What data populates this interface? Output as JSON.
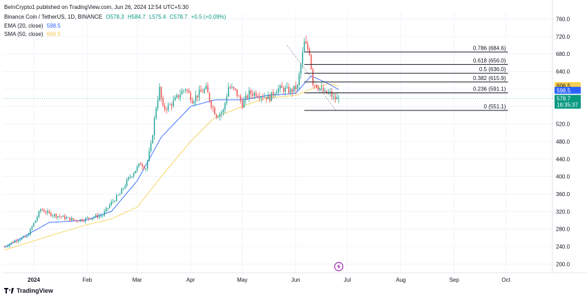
{
  "header": {
    "published": "BeInCrypto1 published on TradingView.com, Jun 26, 2024 12:54 UTC+5:30",
    "symbol": "Binance Coin / TetherUS, 1D, BINANCE",
    "open": "O578.3",
    "high": "H584.7",
    "low": "L575.4",
    "close": "C578.7",
    "change": "+0.5 (+0.09%)",
    "ema_label": "EMA (20, close)",
    "ema_value": "598.5",
    "sma_label": "SMA (50, close)",
    "sma_value": "606.5"
  },
  "branding": {
    "logo_text": "TradingView"
  },
  "colors": {
    "up": "#26a69a",
    "down": "#ef5350",
    "ema": "#2962ff",
    "sma": "#f7d154",
    "fib": "#131722",
    "grid": "#f0f3fa",
    "axis_text": "#131722"
  },
  "chart_data": {
    "type": "candlestick",
    "title": "Binance Coin / TetherUS, 1D, BINANCE",
    "y_ticks": [
      200,
      240,
      280,
      320,
      360,
      400,
      440,
      480,
      520,
      560,
      600,
      640,
      680,
      720,
      760
    ],
    "ylim": [
      180,
      775
    ],
    "x_tick_labels": [
      {
        "date": "2024-01-01",
        "label": "2024",
        "bold": true
      },
      {
        "date": "2024-02-01",
        "label": "Feb"
      },
      {
        "date": "2024-03-01",
        "label": "Mar"
      },
      {
        "date": "2024-04-01",
        "label": "Apr"
      },
      {
        "date": "2024-05-01",
        "label": "May"
      },
      {
        "date": "2024-06-01",
        "label": "Jun"
      },
      {
        "date": "2024-07-01",
        "label": "Jul"
      },
      {
        "date": "2024-08-01",
        "label": "Aug"
      },
      {
        "date": "2024-09-01",
        "label": "Sep"
      },
      {
        "date": "2024-10-01",
        "label": "Oct"
      }
    ],
    "xlim": [
      "2023-12-14",
      "2024-10-16"
    ],
    "price_anchors": [
      [
        "2023-12-15",
        240
      ],
      [
        "2023-12-22",
        255
      ],
      [
        "2023-12-28",
        262
      ],
      [
        "2024-01-02",
        300
      ],
      [
        "2024-01-05",
        325
      ],
      [
        "2024-01-10",
        315
      ],
      [
        "2024-01-15",
        310
      ],
      [
        "2024-01-20",
        305
      ],
      [
        "2024-01-25",
        300
      ],
      [
        "2024-01-30",
        302
      ],
      [
        "2024-02-05",
        308
      ],
      [
        "2024-02-10",
        312
      ],
      [
        "2024-02-15",
        340
      ],
      [
        "2024-02-20",
        360
      ],
      [
        "2024-02-25",
        395
      ],
      [
        "2024-02-28",
        410
      ],
      [
        "2024-03-03",
        430
      ],
      [
        "2024-03-06",
        420
      ],
      [
        "2024-03-09",
        470
      ],
      [
        "2024-03-12",
        560
      ],
      [
        "2024-03-14",
        600
      ],
      [
        "2024-03-16",
        555
      ],
      [
        "2024-03-19",
        560
      ],
      [
        "2024-03-22",
        570
      ],
      [
        "2024-03-26",
        590
      ],
      [
        "2024-03-29",
        602
      ],
      [
        "2024-04-02",
        575
      ],
      [
        "2024-04-06",
        590
      ],
      [
        "2024-04-10",
        600
      ],
      [
        "2024-04-13",
        565
      ],
      [
        "2024-04-16",
        540
      ],
      [
        "2024-04-20",
        550
      ],
      [
        "2024-04-23",
        605
      ],
      [
        "2024-04-27",
        595
      ],
      [
        "2024-05-01",
        565
      ],
      [
        "2024-05-05",
        590
      ],
      [
        "2024-05-09",
        590
      ],
      [
        "2024-05-13",
        585
      ],
      [
        "2024-05-17",
        580
      ],
      [
        "2024-05-21",
        600
      ],
      [
        "2024-05-25",
        600
      ],
      [
        "2024-05-29",
        595
      ],
      [
        "2024-06-02",
        605
      ],
      [
        "2024-06-05",
        680
      ],
      [
        "2024-06-06",
        705
      ],
      [
        "2024-06-09",
        685
      ],
      [
        "2024-06-11",
        615
      ],
      [
        "2024-06-14",
        605
      ],
      [
        "2024-06-18",
        590
      ],
      [
        "2024-06-21",
        590
      ],
      [
        "2024-06-23",
        578
      ],
      [
        "2024-06-26",
        578.7
      ]
    ],
    "ema_anchors": [
      [
        "2023-12-15",
        238
      ],
      [
        "2024-01-10",
        295
      ],
      [
        "2024-01-31",
        300
      ],
      [
        "2024-02-15",
        320
      ],
      [
        "2024-03-01",
        390
      ],
      [
        "2024-03-15",
        490
      ],
      [
        "2024-04-01",
        560
      ],
      [
        "2024-04-15",
        575
      ],
      [
        "2024-05-01",
        575
      ],
      [
        "2024-05-15",
        585
      ],
      [
        "2024-06-01",
        590
      ],
      [
        "2024-06-10",
        630
      ],
      [
        "2024-06-20",
        612
      ],
      [
        "2024-06-26",
        598.5
      ]
    ],
    "sma_anchors": [
      [
        "2023-12-15",
        232
      ],
      [
        "2024-01-15",
        270
      ],
      [
        "2024-02-01",
        290
      ],
      [
        "2024-02-15",
        303
      ],
      [
        "2024-03-01",
        330
      ],
      [
        "2024-03-15",
        400
      ],
      [
        "2024-04-01",
        480
      ],
      [
        "2024-04-15",
        535
      ],
      [
        "2024-05-01",
        560
      ],
      [
        "2024-05-15",
        580
      ],
      [
        "2024-06-01",
        585
      ],
      [
        "2024-06-10",
        600
      ],
      [
        "2024-06-20",
        612
      ],
      [
        "2024-06-26",
        606.5
      ]
    ],
    "fib_start": "2024-06-06",
    "fib_end": "2024-06-26",
    "fib_levels": [
      {
        "label": "0.786 (684.6)",
        "value": 684.6
      },
      {
        "label": "0.618 (656.0)",
        "value": 656.0
      },
      {
        "label": "0.5 (636.0)",
        "value": 636.0
      },
      {
        "label": "0.382 (615.9)",
        "value": 615.9
      },
      {
        "label": "0.236 (591.1)",
        "value": 591.1
      },
      {
        "label": "0 (551.1)",
        "value": 551.1
      }
    ],
    "price_tags": [
      {
        "label": "606.5",
        "value": 606.5,
        "bg": "#f7d154",
        "fg": "#131722"
      },
      {
        "label": "598.5",
        "value": 598.5,
        "bg": "#2962ff",
        "fg": "#ffffff"
      }
    ],
    "last_price": {
      "label": "578.7",
      "countdown": "16:35:37",
      "value": 578.7,
      "bg": "#089981",
      "fg": "#ffffff"
    },
    "event_icon": "lightning-icon",
    "event_date": "2024-06-26"
  }
}
